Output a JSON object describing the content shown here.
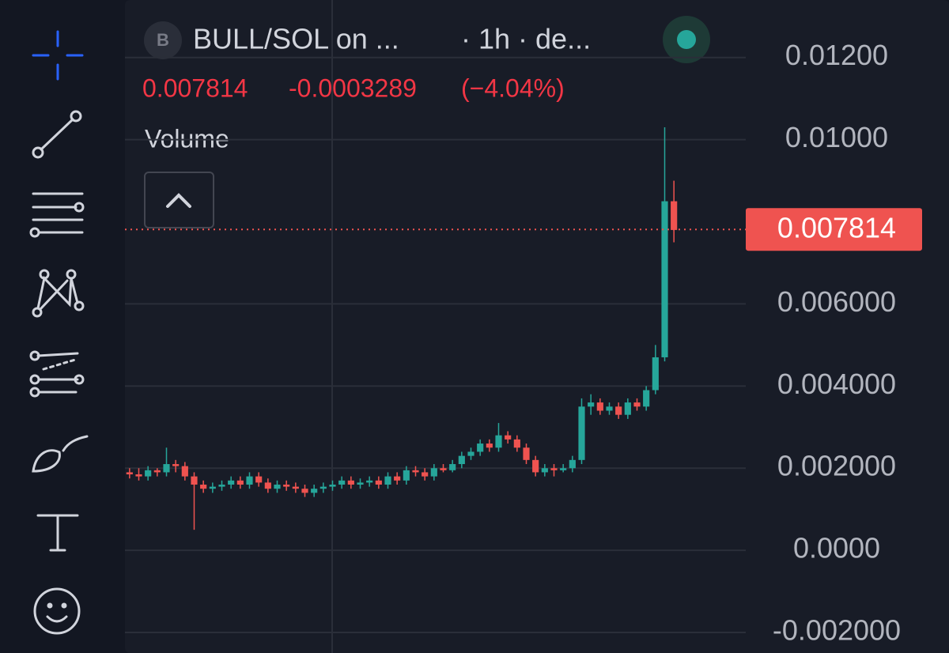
{
  "header": {
    "icon_letter": "B",
    "symbol": "BULL/SOL on ...",
    "interval": "· 1h · de...",
    "volume": "Volume"
  },
  "chart_data": {
    "type": "candlestick",
    "last_price": 0.007814,
    "change": -0.0003289,
    "change_percent": {
      "value": -4.04,
      "label": "(−4.04%)"
    },
    "up_color": "#26a69a",
    "down_color": "#ef5350",
    "grid": true,
    "ylim": [
      -0.0025,
      0.0134
    ],
    "yticks": [
      {
        "value": -0.002,
        "label": "-0.002000"
      },
      {
        "value": 0,
        "label": "0.0000"
      },
      {
        "value": 0.002,
        "label": "0.002000"
      },
      {
        "value": 0.004,
        "label": "0.004000"
      },
      {
        "value": 0.006,
        "label": "0.006000"
      },
      {
        "value": 0.01,
        "label": "0.01000"
      },
      {
        "value": 0.012,
        "label": "0.01200"
      }
    ],
    "open": [
      0.0019,
      0.00185,
      0.0018,
      0.00195,
      0.0019,
      0.0021,
      0.00205,
      0.0018,
      0.0016,
      0.0015,
      0.00155,
      0.0016,
      0.0017,
      0.0016,
      0.0018,
      0.00165,
      0.0015,
      0.0016,
      0.00155,
      0.0015,
      0.0014,
      0.0015,
      0.00155,
      0.0016,
      0.0017,
      0.0016,
      0.00165,
      0.0017,
      0.0016,
      0.0018,
      0.0017,
      0.00195,
      0.0019,
      0.0018,
      0.002,
      0.00195,
      0.0021,
      0.0023,
      0.0024,
      0.0026,
      0.0025,
      0.0028,
      0.0027,
      0.0025,
      0.0022,
      0.0019,
      0.002,
      0.00195,
      0.002,
      0.0022,
      0.0035,
      0.0036,
      0.0034,
      0.0035,
      0.0033,
      0.0036,
      0.0035,
      0.0039,
      0.0047,
      0.0085
    ],
    "high": [
      0.002,
      0.002,
      0.00205,
      0.002,
      0.0025,
      0.0022,
      0.00215,
      0.0019,
      0.0017,
      0.00165,
      0.0017,
      0.0018,
      0.0018,
      0.0019,
      0.0019,
      0.00175,
      0.0017,
      0.0017,
      0.00165,
      0.0016,
      0.0016,
      0.00165,
      0.0017,
      0.0018,
      0.0018,
      0.00175,
      0.0018,
      0.0018,
      0.0019,
      0.0019,
      0.00205,
      0.00205,
      0.002,
      0.0021,
      0.0021,
      0.0022,
      0.0024,
      0.0025,
      0.0027,
      0.0027,
      0.0031,
      0.0029,
      0.0028,
      0.0026,
      0.0023,
      0.0021,
      0.0021,
      0.0021,
      0.0023,
      0.0037,
      0.0038,
      0.0037,
      0.0036,
      0.0036,
      0.0037,
      0.0037,
      0.004,
      0.005,
      0.0103,
      0.009
    ],
    "low": [
      0.00175,
      0.0017,
      0.0017,
      0.0018,
      0.0018,
      0.0019,
      0.0017,
      0.0005,
      0.0014,
      0.0014,
      0.00145,
      0.0015,
      0.0015,
      0.0015,
      0.00155,
      0.0014,
      0.0014,
      0.00145,
      0.0014,
      0.0013,
      0.0013,
      0.0014,
      0.00145,
      0.0015,
      0.0015,
      0.0015,
      0.00155,
      0.0015,
      0.0015,
      0.0016,
      0.0016,
      0.0018,
      0.0017,
      0.0017,
      0.0019,
      0.0019,
      0.002,
      0.0022,
      0.0023,
      0.0024,
      0.0024,
      0.0026,
      0.0024,
      0.0021,
      0.0018,
      0.0018,
      0.0018,
      0.0019,
      0.0019,
      0.0021,
      0.0033,
      0.0033,
      0.0033,
      0.0032,
      0.0032,
      0.0034,
      0.0034,
      0.0038,
      0.0046,
      0.0075
    ],
    "close": [
      0.00185,
      0.0018,
      0.00195,
      0.0019,
      0.0021,
      0.00205,
      0.0018,
      0.0016,
      0.0015,
      0.00155,
      0.0016,
      0.0017,
      0.0016,
      0.0018,
      0.00165,
      0.0015,
      0.0016,
      0.00155,
      0.0015,
      0.0014,
      0.0015,
      0.00155,
      0.0016,
      0.0017,
      0.0016,
      0.00165,
      0.0017,
      0.0016,
      0.0018,
      0.0017,
      0.00195,
      0.0019,
      0.0018,
      0.002,
      0.00195,
      0.0021,
      0.0023,
      0.0024,
      0.0026,
      0.0025,
      0.0028,
      0.0027,
      0.0025,
      0.0022,
      0.0019,
      0.002,
      0.00195,
      0.002,
      0.0022,
      0.0035,
      0.0036,
      0.0034,
      0.0035,
      0.0033,
      0.0036,
      0.0035,
      0.0039,
      0.0047,
      0.0085,
      0.0078
    ]
  }
}
